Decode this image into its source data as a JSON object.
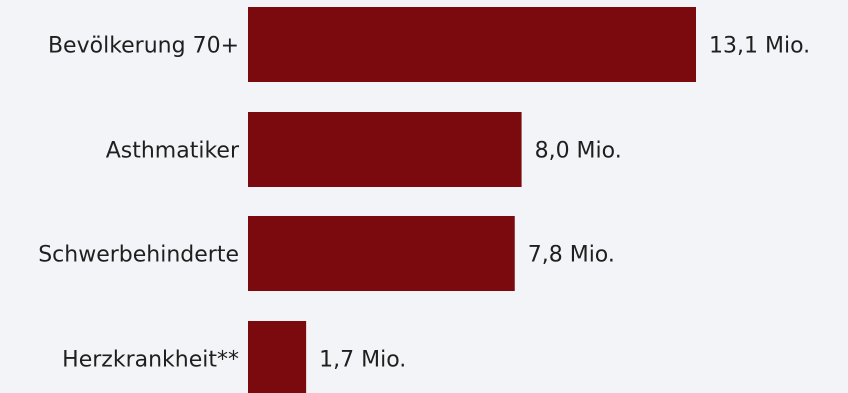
{
  "chart_data": {
    "type": "bar",
    "orientation": "horizontal",
    "categories": [
      "Bevölkerung 70+",
      "Asthmatiker",
      "Schwerbehinderte",
      "Herzkrankheit**"
    ],
    "values": [
      13.1,
      8.0,
      7.8,
      1.7
    ],
    "value_labels": [
      "13,1 Mio.",
      "8,0 Mio.",
      "7,8 Mio.",
      "1,7 Mio."
    ],
    "bar_color": "#7a0a0e",
    "xlim": [
      0,
      13.1
    ],
    "grid": false
  }
}
